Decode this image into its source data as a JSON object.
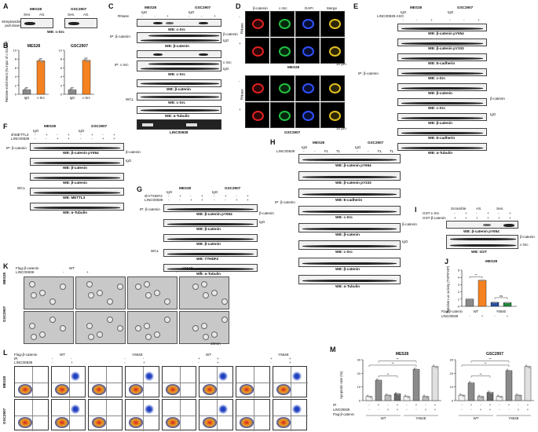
{
  "panel_letters": [
    "A",
    "B",
    "C",
    "D",
    "E",
    "F",
    "G",
    "H",
    "I",
    "J",
    "K",
    "L",
    "M"
  ],
  "cells": {
    "mes28": "MES28",
    "gsc2907": "GSC2907"
  },
  "common": {
    "igg": "IgG",
    "rnase": "RNase",
    "ip_beta_catenin": "IP: β-catenin",
    "ip_csrc": "IP: c-Src",
    "wcl": "WCL",
    "beta_catenin_arrow": "β-catenin",
    "igg_arrow": "IgG",
    "csrc_arrow": "c-Src",
    "plus": "+",
    "minus": "-",
    "linc": "LINC00839"
  },
  "panelA": {
    "row_label": "Streptavidin pull-down",
    "lanes": [
      "Sen.",
      "AS."
    ],
    "wb": "WB: c-Src"
  },
  "panelB": {
    "ylabel": "Relative enrichment (% input of c-Src RIP)",
    "charts": [
      {
        "title": "MES28",
        "categories": [
          "IgG",
          "c-Src"
        ],
        "values": [
          1.0,
          7.6
        ],
        "ylim": [
          0,
          10
        ],
        "yticks": [
          0,
          2,
          4,
          6,
          8,
          10
        ]
      },
      {
        "title": "GSC2907",
        "categories": [
          "IgG",
          "c-Src"
        ],
        "values": [
          1.0,
          7.7
        ],
        "ylim": [
          0,
          10
        ],
        "yticks": [
          0,
          2,
          4,
          6,
          8,
          10
        ]
      }
    ],
    "colors": {
      "igg": "#8a8a8a",
      "csrc": "#f58220"
    }
  },
  "panelC": {
    "wb_csrc": "WB: c-Src",
    "wb_beta": "WB: β-catenin",
    "wb_tubulin": "WB: α-Tubulin",
    "linc_gel": "LINC00839"
  },
  "panelD": {
    "columns": [
      "β-catenin",
      "c-Src",
      "DAPI",
      "Merge"
    ],
    "rnase": "RNase",
    "scale": "10 μm",
    "captions": [
      "MES28",
      "GSC2907"
    ]
  },
  "panelE": {
    "treatment": "LINC00839 ASO",
    "wbs": [
      "WB: β-catenin pY654",
      "WB: β-catenin pY333",
      "WB: E-cadherin",
      "WB: c-Src",
      "WB: β-catenin",
      "WB: c-Src",
      "WB: β-catenin",
      "WB: E-cadherin",
      "WB: α-Tubulin"
    ]
  },
  "panelF": {
    "sh": "shMETTL3",
    "wbs": [
      "WB: β-catenin pY654",
      "WB: β-catenin",
      "WB: β-catenin",
      "WB: METTL3",
      "WB: α-Tubulin"
    ]
  },
  "panelG": {
    "sh": "shYTHDF2",
    "wbs": [
      "WB: β-catenin pY654",
      "WB: β-catenin",
      "WB: β-catenin",
      "WB: YTHDF2",
      "WB: α-Tubulin"
    ]
  },
  "panelH": {
    "fl": "FL",
    "tl": "TL",
    "wbs": [
      "WB: β-catenin pY654",
      "WB: β-catenin pY333",
      "WB: E-cadherin",
      "WB: c-Src",
      "WB: β-catenin",
      "WB: c-Src",
      "WB: β-catenin",
      "WB: α-Tubulin"
    ]
  },
  "panelI": {
    "rows": [
      "GST-c-Src",
      "GST-β-catenin"
    ],
    "groups": [
      "Scramble",
      "AS.",
      "Sen."
    ],
    "wbs": [
      "WB: β-catenin pY654",
      "WB: GST"
    ]
  },
  "panelJ": {
    "title": "MES28",
    "ylabel": "Relative Luc activity (TOP/FOP)",
    "rows": [
      "Flag-β-catenin",
      "LINC00839"
    ],
    "groups": [
      "WT",
      "Y654E"
    ],
    "sig": [
      "**",
      "ns"
    ],
    "chart_data": {
      "type": "bar",
      "categories": [
        "WT -",
        "WT +",
        "Y654E -",
        "Y654E +"
      ],
      "values": [
        1.0,
        3.6,
        0.55,
        0.5
      ],
      "ylim": [
        0,
        5
      ],
      "yticks": [
        0,
        1,
        2,
        3,
        4,
        5
      ],
      "colors": [
        "#8a8a8a",
        "#f58220",
        "#2b4fa3",
        "#1f8a3a"
      ]
    }
  },
  "panelK": {
    "header": "Flag-β-catenin",
    "groups": [
      "WT",
      "Y654E"
    ],
    "scale": "10mm"
  },
  "panelL": {
    "header": "Flag-β-catenin",
    "ir": "IR",
    "groups": [
      "WT",
      "Y654E",
      "WT",
      "Y654E"
    ]
  },
  "panelM": {
    "ylabel": "Apoptotic rate (%)",
    "rows": [
      "IR",
      "LINC00839",
      "Flag-β-catenin"
    ],
    "groups": [
      "WT",
      "Y654E"
    ],
    "sig": "**",
    "chart_data": [
      {
        "type": "bar",
        "title": "MES28",
        "values": [
          3,
          15,
          4,
          5,
          3,
          23,
          3,
          25
        ],
        "ylim": [
          0,
          30
        ],
        "yticks": [
          0,
          10,
          20,
          30
        ]
      },
      {
        "type": "bar",
        "title": "GSC2907",
        "values": [
          4,
          13,
          3,
          6,
          3,
          22,
          4,
          25
        ],
        "ylim": [
          0,
          30
        ],
        "yticks": [
          0,
          10,
          20,
          30
        ]
      }
    ],
    "colors": [
      "#f2f2f2",
      "#8a8a8a",
      "#bdbdbd",
      "#6a6a6a",
      "#f2f2f2",
      "#8a8a8a",
      "#bdbdbd",
      "#e0e0e0"
    ]
  }
}
